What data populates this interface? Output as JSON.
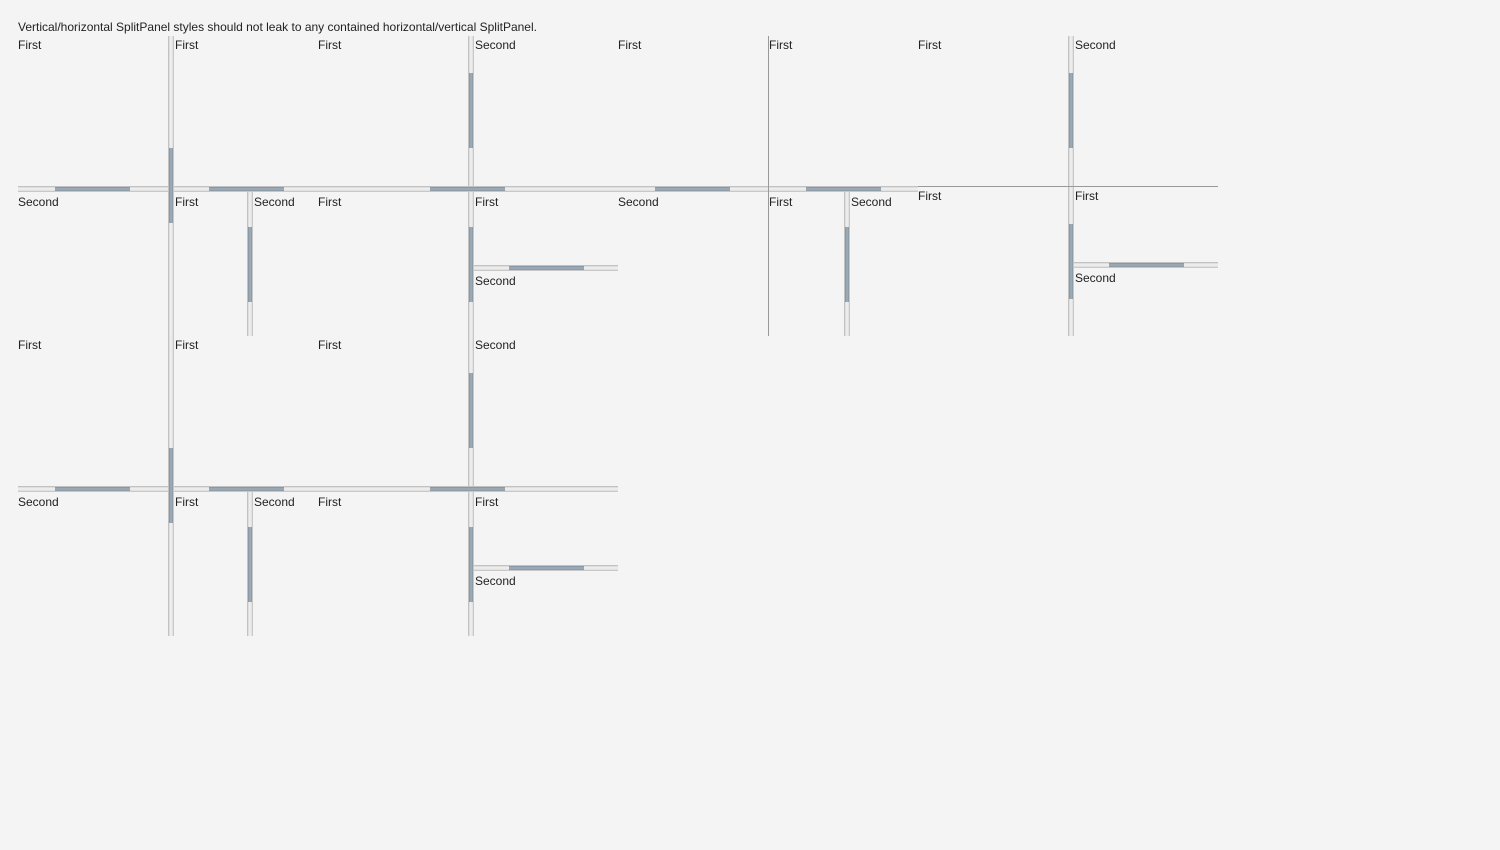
{
  "caption": "Vertical/horizontal SplitPanel styles should not leak to any contained horizontal/vertical SplitPanel.",
  "labels": {
    "first": "First",
    "second": "Second"
  },
  "colors": {
    "background": "#f4f4f4",
    "grip": "#94a3b0",
    "splitter": "#e4e4e4"
  }
}
